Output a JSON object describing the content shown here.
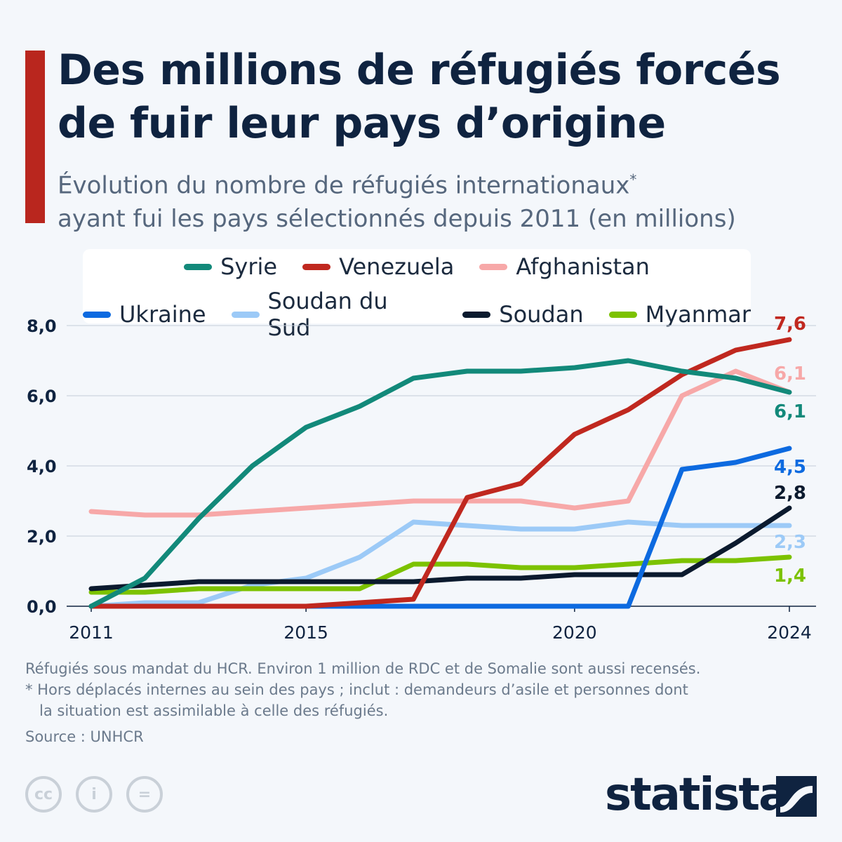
{
  "title": "Des millions de réfugiés forcés de fuir leur pays d’origine",
  "subtitle_line1": "Évolution du nombre de réfugiés internationaux",
  "subtitle_star": "*",
  "subtitle_line2": "ayant fui les pays sélectionnés depuis 2011 (en millions)",
  "footnote1": "Réfugiés sous mandat du HCR. Environ 1 million de RDC et de Somalie sont aussi recensés.",
  "footnote2": "* Hors déplacés internes au sein des pays ; inclut : demandeurs d’asile et personnes dont",
  "footnote3": "   la situation est assimilable à celle des réfugiés.",
  "source": "Source : UNHCR",
  "brand": "statista",
  "chart_data": {
    "type": "line",
    "title": "Des millions de réfugiés forcés de fuir leur pays d’origine",
    "ylabel": "millions",
    "ylim": [
      0,
      8
    ],
    "yticks": [
      "0,0",
      "2,0",
      "4,0",
      "6,0",
      "8,0"
    ],
    "ytick_values": [
      0,
      2,
      4,
      6,
      8
    ],
    "xticks": [
      "2011",
      "2015",
      "2020",
      "2024"
    ],
    "xtick_values": [
      2011,
      2015,
      2020,
      2024
    ],
    "x": [
      2011,
      2012,
      2013,
      2014,
      2015,
      2016,
      2017,
      2018,
      2019,
      2020,
      2021,
      2022,
      2023,
      2024
    ],
    "legend_placement": "top",
    "series": [
      {
        "name": "Afghanistan",
        "color": "#f7a8a8",
        "end_label": "6,1",
        "values": [
          2.7,
          2.6,
          2.6,
          2.7,
          2.8,
          2.9,
          3.0,
          3.0,
          3.0,
          2.8,
          3.0,
          6.0,
          6.7,
          6.1
        ]
      },
      {
        "name": "Soudan du Sud",
        "color": "#9ccaf7",
        "end_label": "2,3",
        "values": [
          0,
          0.1,
          0.1,
          0.6,
          0.8,
          1.4,
          2.4,
          2.3,
          2.2,
          2.2,
          2.4,
          2.3,
          2.3,
          2.3
        ]
      },
      {
        "name": "Myanmar",
        "color": "#7cc200",
        "end_label": "1,4",
        "values": [
          0.4,
          0.4,
          0.5,
          0.5,
          0.5,
          0.5,
          1.2,
          1.2,
          1.1,
          1.1,
          1.2,
          1.3,
          1.3,
          1.4
        ]
      },
      {
        "name": "Soudan",
        "color": "#0b1a2e",
        "end_label": "2,8",
        "values": [
          0.5,
          0.6,
          0.7,
          0.7,
          0.7,
          0.7,
          0.7,
          0.8,
          0.8,
          0.9,
          0.9,
          0.9,
          1.8,
          2.8
        ]
      },
      {
        "name": "Ukraine",
        "color": "#0d6ae0",
        "end_label": "4,5",
        "values": [
          0,
          0,
          0,
          0,
          0,
          0,
          0,
          0,
          0,
          0,
          0,
          3.9,
          4.1,
          4.5
        ]
      },
      {
        "name": "Venezuela",
        "color": "#c0281f",
        "end_label": "7,6",
        "values": [
          0,
          0,
          0,
          0,
          0,
          0.1,
          0.2,
          3.1,
          3.5,
          4.9,
          5.6,
          6.6,
          7.3,
          7.6
        ]
      },
      {
        "name": "Syrie",
        "color": "#12897a",
        "end_label": "6,1",
        "values": [
          0,
          0.8,
          2.5,
          4.0,
          5.1,
          5.7,
          6.5,
          6.7,
          6.7,
          6.8,
          7.0,
          6.7,
          6.5,
          6.1
        ]
      }
    ],
    "legend_rows": [
      [
        "Syrie",
        "Venezuela",
        "Afghanistan"
      ],
      [
        "Ukraine",
        "Soudan du Sud",
        "Soudan",
        "Myanmar"
      ]
    ]
  }
}
